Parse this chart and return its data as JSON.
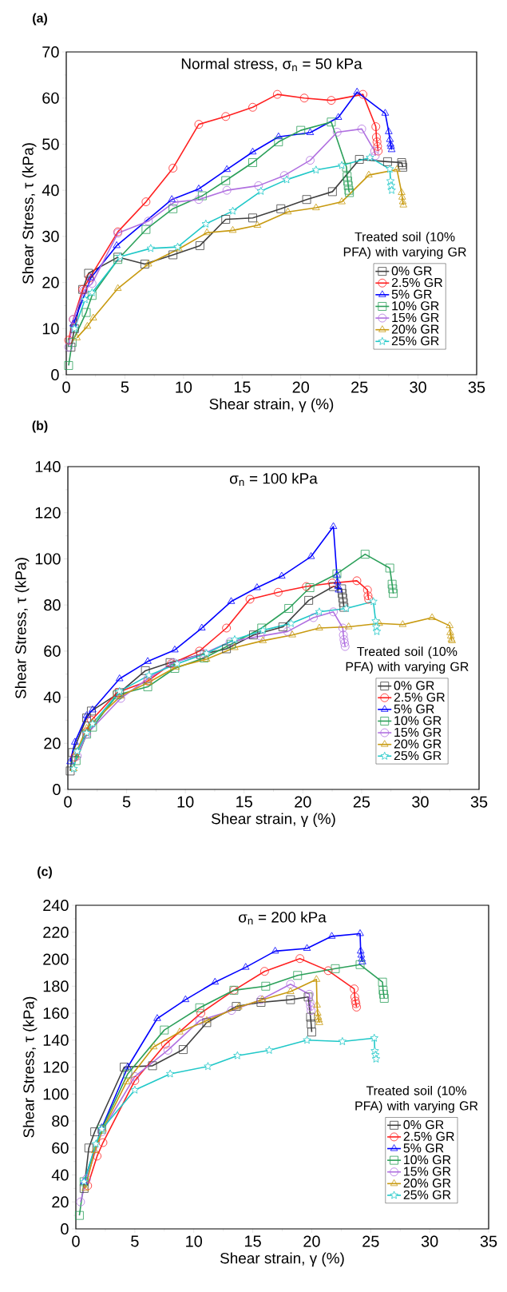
{
  "chart_data": [
    {
      "type": "line",
      "title": "Normal stress, σ$_{n}$ = 50 kPa",
      "xlabel": "Shear strain, γ (%)",
      "ylabel": "Shear Stress, τ (kPa)",
      "legend_title": "Treated soil (10% PFA) with varying GR",
      "annotations": [
        "(a)"
      ],
      "xlim": [
        0,
        35
      ],
      "ylim": [
        0,
        70
      ],
      "xticks": [
        0,
        5,
        10,
        15,
        20,
        25,
        30,
        35
      ],
      "yticks": [
        0,
        10,
        20,
        30,
        40,
        50,
        60,
        70
      ],
      "legend": "bottom right",
      "line_style": "solid",
      "series": [
        {
          "name": "0% GR",
          "color": "#404040",
          "marker": "square",
          "x": [
            0.4,
            0.7,
            1.4,
            1.9,
            4.4,
            6.7,
            9.1,
            11.4,
            13.6,
            15.9,
            18.3,
            20.5,
            22.7,
            25,
            27.4,
            28.6,
            28.65,
            28.7
          ],
          "values": [
            6,
            10,
            18.5,
            22,
            25.5,
            24,
            26,
            28,
            33.7,
            34,
            36,
            38,
            39.7,
            46.7,
            46.2,
            46,
            45.5,
            45
          ]
        },
        {
          "name": "2.5% GR",
          "color": "#ff2020",
          "marker": "circle",
          "x": [
            0.2,
            0.6,
            1.4,
            2,
            4.4,
            6.8,
            9.1,
            11.3,
            13.6,
            15.9,
            18,
            20.3,
            22.6,
            25.3,
            26.4,
            26.45,
            26.5,
            26.55,
            26.6
          ],
          "values": [
            7.5,
            12,
            18.5,
            21,
            31,
            37.5,
            44.8,
            54.3,
            56,
            58,
            60.8,
            60,
            59.5,
            60.8,
            53.8,
            51.5,
            50.5,
            49.5,
            48.5
          ]
        },
        {
          "name": "5% GR",
          "color": "#0000ff",
          "marker": "triangle",
          "x": [
            0.6,
            2.1,
            4.3,
            9,
            11.3,
            13.7,
            15.9,
            18.1,
            20.8,
            23.2,
            24.8,
            27.2,
            27.5,
            27.6,
            27.65,
            27.7,
            27.75
          ],
          "values": [
            11,
            21,
            28,
            38,
            40.3,
            44.5,
            48.3,
            51.6,
            52.5,
            55.8,
            61.3,
            56.7,
            52.7,
            51,
            50,
            49.5,
            48.8
          ]
        },
        {
          "name": "10% GR",
          "color": "#2ca05a",
          "marker": "square",
          "x": [
            0.2,
            0.5,
            1.7,
            2.2,
            4.4,
            6.8,
            9.1,
            11.6,
            13.6,
            15.9,
            18.1,
            20,
            22.6,
            23.9,
            23.95,
            24,
            24.05,
            24.1,
            24.15
          ],
          "values": [
            2,
            7,
            13.5,
            17.2,
            25,
            31.5,
            36,
            38.8,
            42.1,
            46,
            50.5,
            53,
            54.8,
            45,
            43,
            42,
            41,
            40,
            39.5
          ]
        },
        {
          "name": "15% GR",
          "color": "#b070e0",
          "marker": "circle",
          "x": [
            0.2,
            0.6,
            1.5,
            2.2,
            4.4,
            7,
            9.2,
            11.3,
            13.7,
            16.4,
            18.6,
            20.8,
            23.1,
            25.2,
            26.3,
            26.35
          ],
          "values": [
            6,
            12,
            18.2,
            19.8,
            30.7,
            33.3,
            37.4,
            38,
            40,
            41,
            43.2,
            46.5,
            52.6,
            53.3,
            48.5,
            47.5
          ]
        },
        {
          "name": "20% GR",
          "color": "#c89a10",
          "marker": "triangle",
          "x": [
            0.9,
            1.8,
            2.3,
            4.4,
            7,
            9.6,
            12,
            14.2,
            16.3,
            18.9,
            21.3,
            23.5,
            25.8,
            28.2,
            28.6,
            28.65,
            28.7,
            28.75
          ],
          "values": [
            8,
            10.5,
            12.3,
            18.7,
            24,
            27.3,
            30.8,
            31.3,
            32.4,
            35.3,
            36.2,
            37.5,
            43.3,
            44.5,
            39.5,
            38.5,
            37.5,
            36.8
          ]
        },
        {
          "name": "25% GR",
          "color": "#20c8c8",
          "marker": "star",
          "x": [
            0.7,
            1.6,
            2.2,
            4.6,
            7.2,
            9.5,
            11.9,
            14.2,
            16.6,
            18.8,
            21.3,
            23.5,
            25.9,
            27.6,
            27.65,
            27.7,
            27.75
          ],
          "values": [
            10,
            16.3,
            17.8,
            25.6,
            27.4,
            27.7,
            32.7,
            35.5,
            39.8,
            42.3,
            44.4,
            45.4,
            47.1,
            44.6,
            42,
            41,
            40
          ]
        }
      ]
    },
    {
      "type": "line",
      "title": "σ$_{n}$ = 100 kPa",
      "xlabel": "Shear strain, γ (%)",
      "ylabel": "Shear Stress, τ (kPa)",
      "legend_title": "Treated soil (10% PFA) with varying GR",
      "annotations": [
        "(b)"
      ],
      "xlim": [
        0,
        35
      ],
      "ylim": [
        0,
        140
      ],
      "xticks": [
        0,
        5,
        10,
        15,
        20,
        25,
        30,
        35
      ],
      "yticks": [
        0,
        20,
        40,
        60,
        80,
        100,
        120,
        140
      ],
      "legend": "bottom right",
      "line_style": "solid",
      "series": [
        {
          "name": "0% GR",
          "color": "#404040",
          "marker": "square",
          "x": [
            0.2,
            0.4,
            1.6,
            2,
            4.4,
            6.6,
            8.7,
            11.3,
            13.5,
            15.8,
            18.3,
            20.5,
            22.6,
            23.3,
            23.35,
            23.4,
            23.45,
            23.5
          ],
          "values": [
            8,
            16,
            31,
            34,
            42,
            51.5,
            55,
            58.5,
            61,
            67,
            70.5,
            82,
            88,
            87,
            85,
            83,
            81,
            79
          ]
        },
        {
          "name": "2.5% GR",
          "color": "#ff2020",
          "marker": "circle",
          "x": [
            0.6,
            1.6,
            2,
            4.2,
            6.8,
            8.8,
            11.2,
            13.5,
            15.5,
            17.9,
            20.3,
            22.5,
            24.6,
            25.5,
            25.55,
            25.6
          ],
          "values": [
            14,
            25,
            30,
            42,
            47,
            54.5,
            60,
            70,
            82.5,
            85.5,
            88,
            89.5,
            90.5,
            86.5,
            84,
            82.5
          ]
        },
        {
          "name": "5% GR",
          "color": "#0000ff",
          "marker": "triangle",
          "x": [
            0.2,
            0.6,
            1.6,
            2.1,
            4.4,
            6.8,
            9.1,
            11.4,
            13.9,
            16.1,
            18.2,
            20.7,
            22.6,
            22.9,
            22.95,
            23,
            23.05
          ],
          "values": [
            12,
            20.5,
            32,
            34.5,
            48,
            55.5,
            60.5,
            70,
            81.5,
            87.5,
            92.5,
            101,
            114,
            93,
            90,
            88,
            86.5
          ]
        },
        {
          "name": "10% GR",
          "color": "#2ca05a",
          "marker": "square",
          "x": [
            0.7,
            1.6,
            2.1,
            4.2,
            6.8,
            9.1,
            11.6,
            13.9,
            16.5,
            18.8,
            20.6,
            22.9,
            25.3,
            27.4,
            27.6,
            27.65,
            27.7
          ],
          "values": [
            12.5,
            24,
            27,
            41,
            44.5,
            52.5,
            57,
            63,
            70,
            78.5,
            87.5,
            93.5,
            102,
            96,
            89,
            87,
            85
          ]
        },
        {
          "name": "15% GR",
          "color": "#b070e0",
          "marker": "circle",
          "x": [
            0.8,
            1.6,
            4.5,
            6.8,
            9,
            11.6,
            13.8,
            16.4,
            18.7,
            20.9,
            22.6,
            23.4,
            23.45,
            23.5,
            23.55,
            23.6
          ],
          "values": [
            14.5,
            24,
            39.5,
            48,
            55,
            59,
            64,
            66.5,
            68.5,
            74.5,
            77,
            70,
            67,
            65,
            63.5,
            62
          ]
        },
        {
          "name": "20% GR",
          "color": "#c89a10",
          "marker": "triangle",
          "x": [
            0.5,
            0.7,
            1.6,
            2.1,
            4.5,
            6.9,
            9.2,
            11.8,
            14.2,
            16.6,
            19.1,
            21.4,
            23.9,
            26.5,
            28.5,
            31,
            32.5,
            32.55,
            32.6,
            32.65,
            32.7
          ],
          "values": [
            9,
            16,
            26.5,
            29,
            40.5,
            46.5,
            53,
            56.5,
            61.5,
            64.5,
            67,
            70,
            70.5,
            72,
            71.5,
            74.5,
            71,
            68,
            66.5,
            65,
            64.5
          ]
        },
        {
          "name": "25% GR",
          "color": "#20c8c8",
          "marker": "star",
          "x": [
            0.5,
            0.8,
            1.6,
            2.1,
            4.4,
            6.9,
            9.3,
            11.8,
            14.2,
            16.6,
            19,
            21.4,
            23.7,
            26,
            26.2,
            26.25,
            26.3
          ],
          "values": [
            9,
            16.5,
            24.5,
            28.5,
            42.5,
            49.5,
            54.5,
            59,
            65,
            69,
            72,
            77,
            78.5,
            81.5,
            73,
            70.5,
            68.5
          ]
        }
      ]
    },
    {
      "type": "line",
      "title": "σ$_{n}$ = 200 kPa",
      "xlabel": "Shear strain, γ (%)",
      "ylabel": "Shear Stress, τ (kPa)",
      "legend_title": "Treated soil (10% PFA) with varying GR",
      "annotations": [
        "(c)"
      ],
      "xlim": [
        0,
        35
      ],
      "ylim": [
        0,
        240
      ],
      "xticks": [
        0,
        5,
        10,
        15,
        20,
        25,
        30,
        35
      ],
      "yticks": [
        0,
        20,
        40,
        60,
        80,
        100,
        120,
        140,
        160,
        180,
        200,
        220,
        240
      ],
      "legend": "bottom right",
      "line_style": "solid",
      "series": [
        {
          "name": "0% GR",
          "color": "#404040",
          "marker": "square",
          "x": [
            0.7,
            1.1,
            1.6,
            4.1,
            6.5,
            9.1,
            11.1,
            13.6,
            15.7,
            18.2,
            19.7,
            19.9,
            19.95,
            20
          ],
          "values": [
            30,
            60,
            72,
            120,
            121,
            133,
            153,
            165,
            168,
            170,
            172,
            157,
            152,
            146
          ]
        },
        {
          "name": "2.5% GR",
          "color": "#ff2020",
          "marker": "circle",
          "x": [
            1,
            1.8,
            2.3,
            5,
            7.6,
            10.6,
            13.4,
            16,
            19,
            21.4,
            23.6,
            23.65,
            23.7,
            23.75,
            23.8
          ],
          "values": [
            32,
            54,
            64,
            110,
            137,
            160,
            177,
            191,
            200.5,
            191.5,
            178,
            172,
            169,
            167,
            164.5
          ]
        },
        {
          "name": "5% GR",
          "color": "#0000ff",
          "marker": "triangle",
          "x": [
            0.7,
            2.2,
            4.4,
            6.9,
            9.3,
            11.8,
            14.4,
            16.9,
            19.6,
            21.7,
            24.1,
            24.15,
            24.2,
            24.25,
            24.3
          ],
          "values": [
            35,
            75,
            120,
            156,
            170,
            183,
            194,
            206,
            208,
            217,
            219,
            206,
            203,
            200,
            198
          ]
        },
        {
          "name": "10% GR",
          "color": "#2ca05a",
          "marker": "square",
          "x": [
            0.3,
            0.7,
            2.2,
            4.4,
            7.5,
            10.5,
            13.4,
            16.1,
            18.8,
            22,
            24.1,
            26,
            26.05,
            26.1,
            26.15
          ],
          "values": [
            10,
            35,
            74,
            115,
            147.5,
            164,
            177,
            180,
            188,
            193,
            196,
            183,
            177,
            174,
            171
          ]
        },
        {
          "name": "15% GR",
          "color": "#b070e0",
          "marker": "circle",
          "x": [
            0.4,
            0.9,
            2.2,
            5,
            7.8,
            10.5,
            13.2,
            15.7,
            18.2,
            19.8,
            19.85,
            19.9,
            19.95
          ],
          "values": [
            20,
            37,
            72,
            113,
            132.5,
            154.5,
            162,
            170,
            181.5,
            174,
            168,
            165,
            162
          ]
        },
        {
          "name": "20% GR",
          "color": "#c89a10",
          "marker": "triangle",
          "x": [
            0.8,
            1.6,
            2.3,
            4.3,
            6.6,
            8.8,
            11.1,
            13.8,
            15.8,
            18.2,
            20.4,
            20.45,
            20.5,
            20.55,
            20.6,
            20.65
          ],
          "values": [
            30,
            58,
            74,
            109,
            135,
            146,
            154.5,
            164.5,
            170,
            176,
            185,
            166,
            160,
            157,
            155,
            153
          ]
        },
        {
          "name": "25% GR",
          "color": "#20c8c8",
          "marker": "star",
          "x": [
            0.7,
            1.7,
            2.2,
            5,
            8,
            11.2,
            13.7,
            16.4,
            19.6,
            22.6,
            25.3,
            25.35,
            25.4,
            25.45
          ],
          "values": [
            35,
            63,
            74,
            103,
            115,
            120.5,
            128.5,
            132.5,
            140,
            139,
            141.5,
            132,
            129,
            126
          ]
        }
      ]
    }
  ]
}
